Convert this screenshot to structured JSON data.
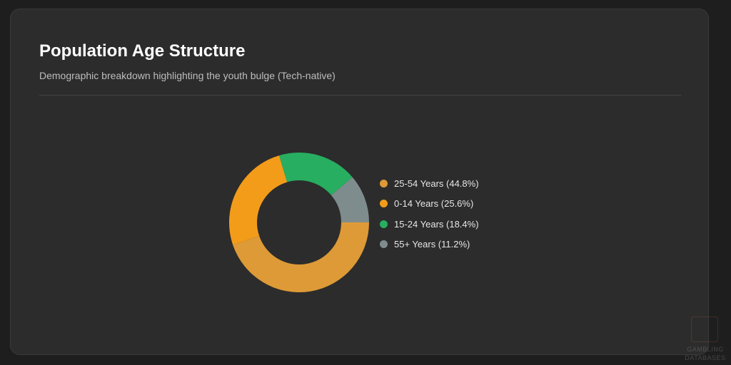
{
  "header": {
    "title": "Population Age Structure",
    "subtitle": "Demographic breakdown highlighting the youth bulge (Tech-native)"
  },
  "chart_data": {
    "type": "pie",
    "title": "Population Age Structure",
    "subtitle": "Demographic breakdown highlighting the youth bulge (Tech-native)",
    "donut": true,
    "legend_position": "right",
    "slices": [
      {
        "label": "25-54 Years (44.8%)",
        "value": 44.8,
        "color": "#de9a36"
      },
      {
        "label": "0-14 Years (25.6%)",
        "value": 25.6,
        "color": "#f39c1a"
      },
      {
        "label": "15-24 Years (18.4%)",
        "value": 18.4,
        "color": "#27ae60"
      },
      {
        "label": "55+ Years (11.2%)",
        "value": 11.2,
        "color": "#7f8c8d"
      }
    ]
  },
  "watermark": {
    "text": "GAMBLING DATABASES"
  },
  "colors": {
    "page_background": "#1e1e1e",
    "card_background": "#2c2c2c",
    "title": "#ffffff",
    "subtitle": "#bdbdbd"
  }
}
